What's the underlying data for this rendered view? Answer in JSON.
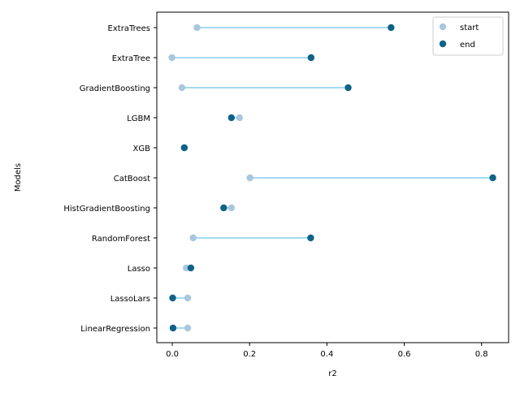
{
  "chart_data": {
    "type": "dumbbell",
    "title": "",
    "xlabel": "r2",
    "ylabel": "Models",
    "xlim": [
      -0.04,
      0.87
    ],
    "xticks": [
      0.0,
      0.2,
      0.4,
      0.6,
      0.8
    ],
    "xtick_labels": [
      "0.0",
      "0.2",
      "0.4",
      "0.6",
      "0.8"
    ],
    "grid": false,
    "legend_position": "top-right",
    "categories": [
      "ExtraTrees",
      "ExtraTree",
      "GradientBoosting",
      "LGBM",
      "XGB",
      "CatBoost",
      "HistGradientBoosting",
      "RandomForest",
      "Lasso",
      "LassoLars",
      "LinearRegression"
    ],
    "series": [
      {
        "name": "start",
        "color": "#a9c7df",
        "values": [
          0.064,
          -0.001,
          0.025,
          0.174,
          0.032,
          0.201,
          0.153,
          0.054,
          0.036,
          0.04,
          0.04
        ]
      },
      {
        "name": "end",
        "color": "#0e6386",
        "values": [
          0.566,
          0.359,
          0.455,
          0.153,
          0.031,
          0.829,
          0.133,
          0.358,
          0.048,
          0.001,
          0.002
        ]
      }
    ],
    "connector_color": "#87ceeb"
  }
}
